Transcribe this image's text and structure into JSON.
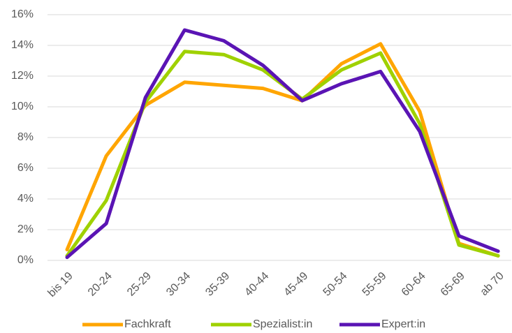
{
  "chart_data": {
    "type": "line",
    "categories": [
      "bis 19",
      "20-24",
      "25-29",
      "30-34",
      "35-39",
      "40-44",
      "45-49",
      "50-54",
      "55-59",
      "60-64",
      "65-69",
      "ab 70"
    ],
    "series": [
      {
        "name": "Fachkraft",
        "color": "#ffa500",
        "values": [
          0.7,
          6.8,
          10.1,
          11.6,
          11.4,
          11.2,
          10.4,
          12.8,
          14.1,
          9.7,
          1.1,
          0.3
        ]
      },
      {
        "name": "Spezialist:in",
        "color": "#9fd100",
        "values": [
          0.3,
          3.9,
          10.3,
          13.6,
          13.4,
          12.4,
          10.5,
          12.4,
          13.5,
          8.9,
          1.0,
          0.3
        ]
      },
      {
        "name": "Expert:in",
        "color": "#5a14b4",
        "values": [
          0.2,
          2.4,
          10.6,
          15.0,
          14.3,
          12.7,
          10.4,
          11.5,
          12.3,
          8.4,
          1.6,
          0.6
        ]
      }
    ],
    "ylim": [
      0,
      16
    ],
    "yticks": [
      {
        "value": 0,
        "label": "0%"
      },
      {
        "value": 2,
        "label": "2%"
      },
      {
        "value": 4,
        "label": "4%"
      },
      {
        "value": 6,
        "label": "6%"
      },
      {
        "value": 8,
        "label": "8%"
      },
      {
        "value": 10,
        "label": "10%"
      },
      {
        "value": 12,
        "label": "12%"
      },
      {
        "value": 14,
        "label": "14%"
      },
      {
        "value": 16,
        "label": "16%"
      }
    ],
    "grid": true,
    "legend": "bottom"
  }
}
